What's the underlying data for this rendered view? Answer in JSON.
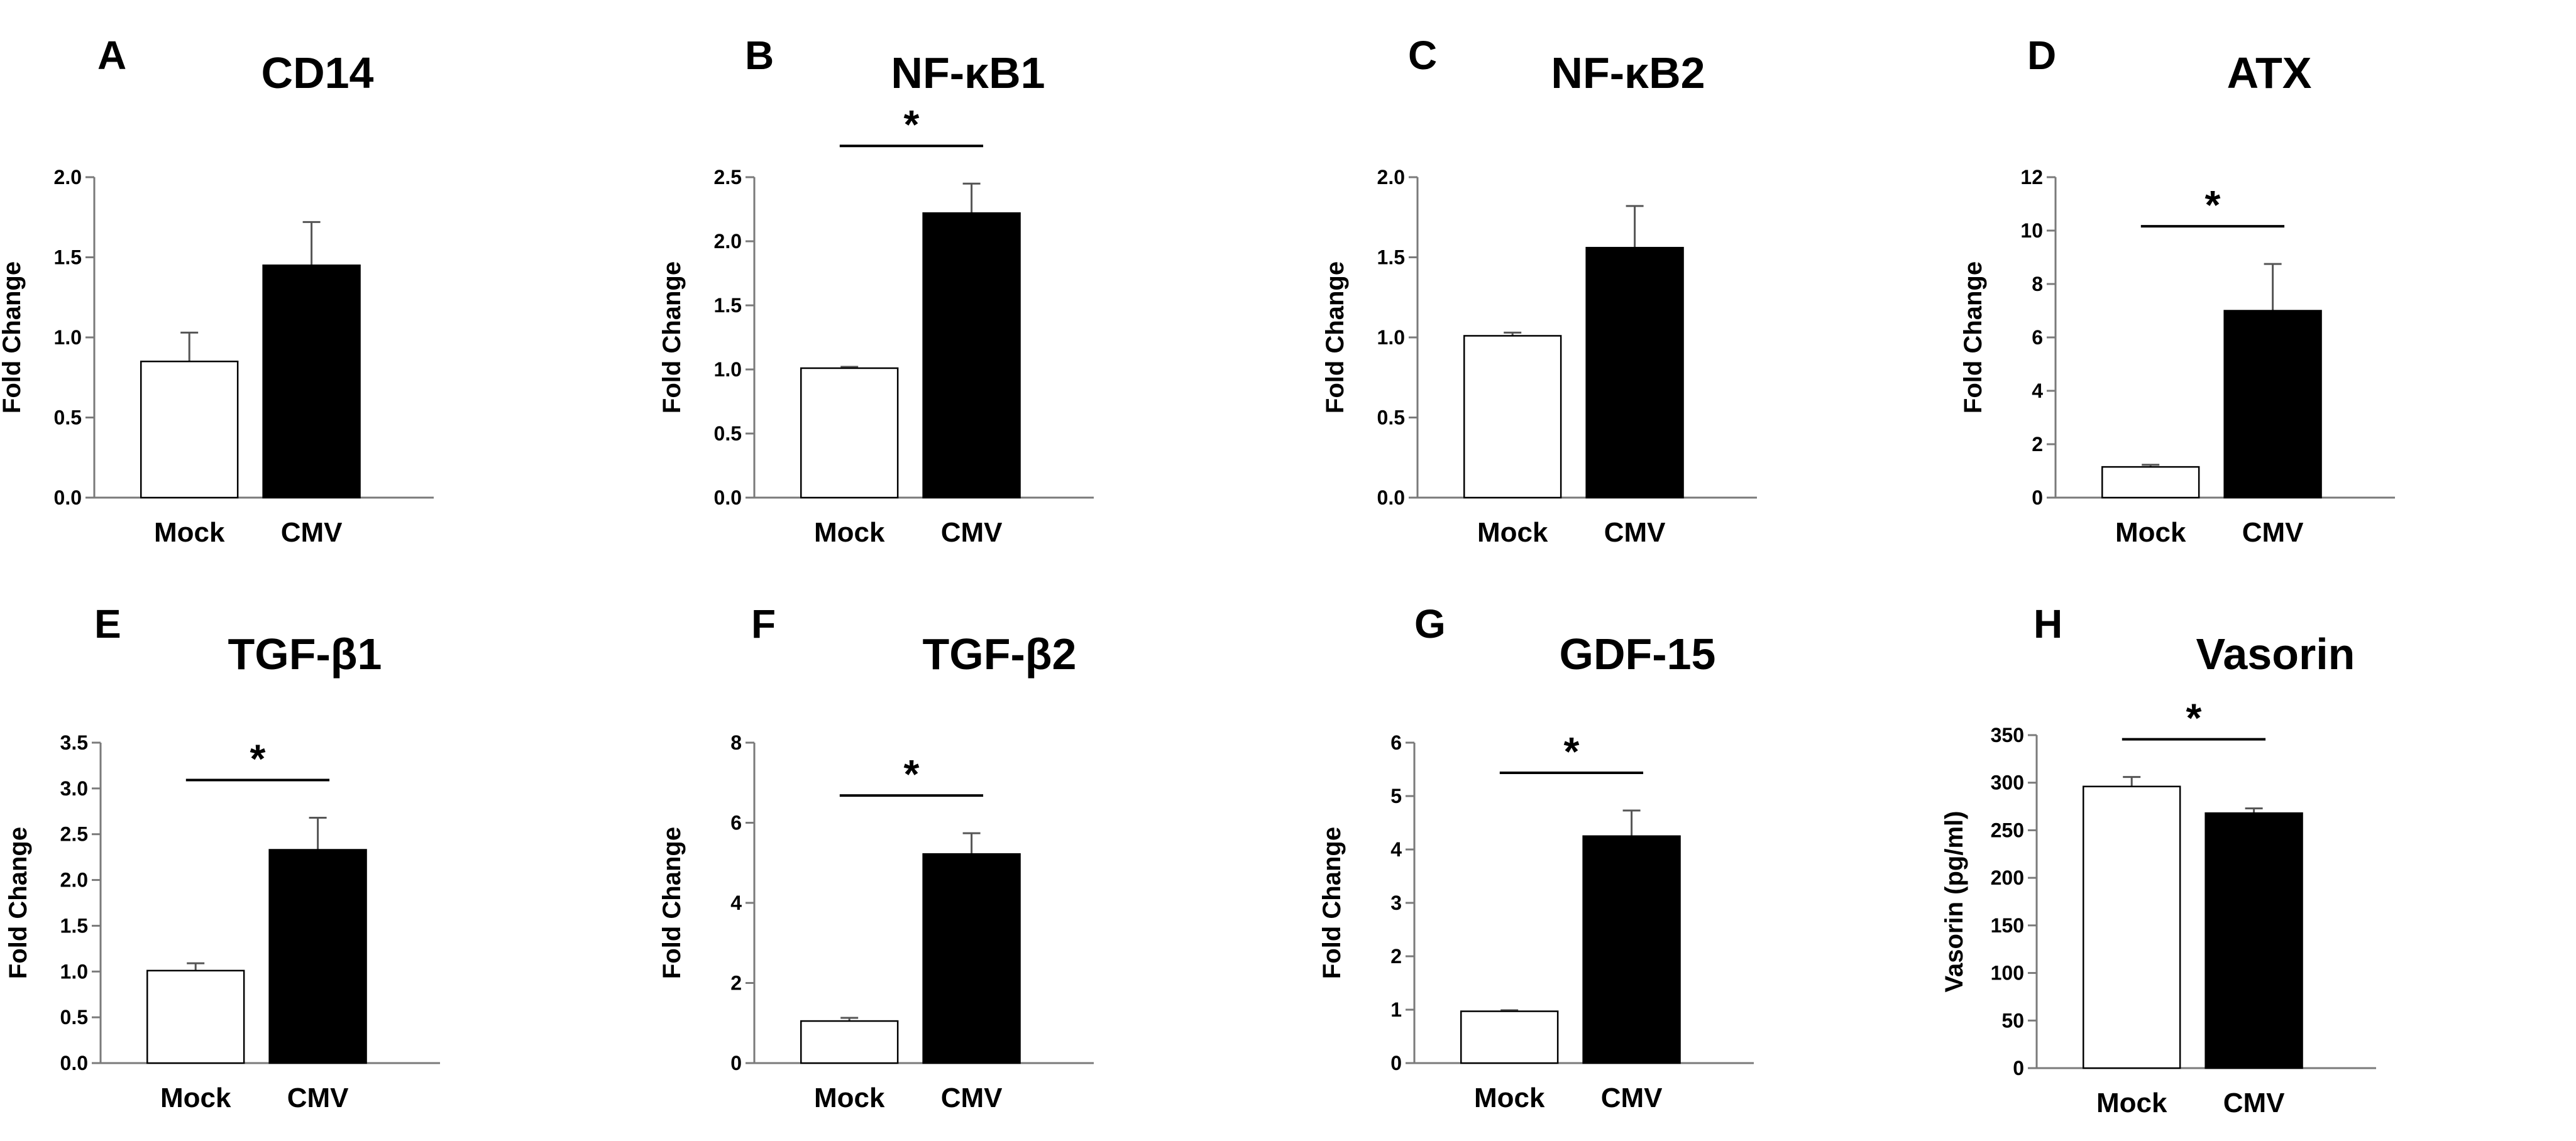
{
  "chart_data": [
    {
      "panel": "A",
      "title": "CD14",
      "type": "bar",
      "ylabel": "Fold Change",
      "categories": [
        "Mock",
        "CMV"
      ],
      "values": [
        0.85,
        1.45
      ],
      "errors": [
        0.18,
        0.27
      ],
      "ylim": [
        0,
        2.0
      ],
      "yticks": [
        "0.0",
        "0.5",
        "1.0",
        "1.5",
        "2.0"
      ],
      "significant": false,
      "sig_label": ""
    },
    {
      "panel": "B",
      "title": "NF-κB1",
      "type": "bar",
      "ylabel": "Fold Change",
      "categories": [
        "Mock",
        "CMV"
      ],
      "values": [
        1.01,
        2.22
      ],
      "errors": [
        0.01,
        0.23
      ],
      "ylim": [
        0,
        2.5
      ],
      "yticks": [
        "0.0",
        "0.5",
        "1.0",
        "1.5",
        "2.0",
        "2.5"
      ],
      "significant": true,
      "sig_label": "*"
    },
    {
      "panel": "C",
      "title": "NF-κB2",
      "type": "bar",
      "ylabel": "Fold Change",
      "categories": [
        "Mock",
        "CMV"
      ],
      "values": [
        1.01,
        1.56
      ],
      "errors": [
        0.02,
        0.26
      ],
      "ylim": [
        0,
        2.0
      ],
      "yticks": [
        "0.0",
        "0.5",
        "1.0",
        "1.5",
        "2.0"
      ],
      "significant": false,
      "sig_label": ""
    },
    {
      "panel": "D",
      "title": "ATX",
      "type": "bar",
      "ylabel": "Fold Change",
      "categories": [
        "Mock",
        "CMV"
      ],
      "values": [
        1.15,
        7.0
      ],
      "errors": [
        0.08,
        1.75
      ],
      "ylim": [
        0,
        12
      ],
      "yticks": [
        "0",
        "2",
        "4",
        "6",
        "8",
        "10",
        "12"
      ],
      "significant": true,
      "sig_label": "*"
    },
    {
      "panel": "E",
      "title": "TGF-β1",
      "type": "bar",
      "ylabel": "Fold Change",
      "categories": [
        "Mock",
        "CMV"
      ],
      "values": [
        1.01,
        2.33
      ],
      "errors": [
        0.08,
        0.35
      ],
      "ylim": [
        0,
        3.5
      ],
      "yticks": [
        "0.0",
        "0.5",
        "1.0",
        "1.5",
        "2.0",
        "2.5",
        "3.0",
        "3.5"
      ],
      "significant": true,
      "sig_label": "*"
    },
    {
      "panel": "F",
      "title": "TGF-β2",
      "type": "bar",
      "ylabel": "Fold Change",
      "categories": [
        "Mock",
        "CMV"
      ],
      "values": [
        1.05,
        5.22
      ],
      "errors": [
        0.08,
        0.52
      ],
      "ylim": [
        0,
        8
      ],
      "yticks": [
        "0",
        "2",
        "4",
        "6",
        "8"
      ],
      "significant": true,
      "sig_label": "*"
    },
    {
      "panel": "G",
      "title": "GDF-15",
      "type": "bar",
      "ylabel": "Fold Change",
      "categories": [
        "Mock",
        "CMV"
      ],
      "values": [
        0.97,
        4.25
      ],
      "errors": [
        0.02,
        0.48
      ],
      "ylim": [
        0,
        6
      ],
      "yticks": [
        "0",
        "1",
        "2",
        "3",
        "4",
        "5",
        "6"
      ],
      "significant": true,
      "sig_label": "*"
    },
    {
      "panel": "H",
      "title": "Vasorin",
      "type": "bar",
      "ylabel": "Vasorin (pg/ml)",
      "categories": [
        "Mock",
        "CMV"
      ],
      "values": [
        296,
        268
      ],
      "errors": [
        10,
        5
      ],
      "ylim": [
        0,
        350
      ],
      "yticks": [
        "0",
        "50",
        "100",
        "150",
        "200",
        "250",
        "300",
        "350"
      ],
      "significant": true,
      "sig_label": "*"
    }
  ]
}
